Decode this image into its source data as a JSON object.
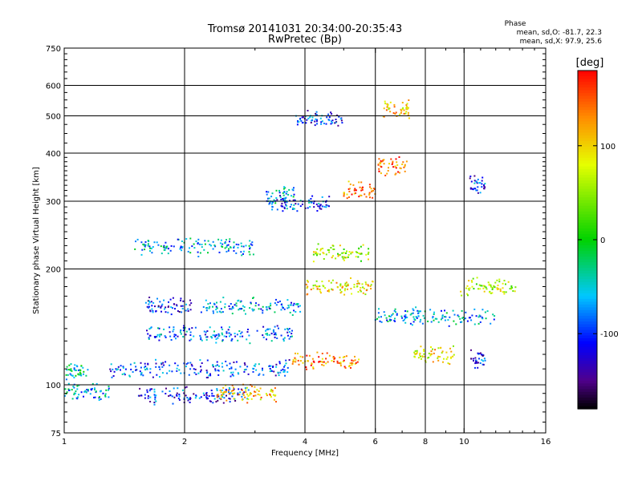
{
  "chart_data": {
    "type": "scatter",
    "title": "Tromsø 20141031 20:34:00-20:35:43",
    "subtitle": "RwPretec (Bp)",
    "xlabel": "Frequency [MHz]",
    "ylabel": "Stationary phase Virtual Height [km]",
    "x_scale": "log",
    "y_scale": "log",
    "xlim": [
      1,
      16
    ],
    "ylim": [
      75,
      750
    ],
    "grid": true,
    "x_ticks": [
      1,
      2,
      4,
      6,
      8,
      10,
      16
    ],
    "x_tick_labels": [
      "1",
      "2",
      "4",
      "6",
      "8",
      "10",
      "16"
    ],
    "y_ticks": [
      75,
      100,
      200,
      300,
      400,
      500,
      600,
      750
    ],
    "y_tick_labels": [
      "75",
      "100",
      "200",
      "300",
      "400",
      "500",
      "600",
      "750"
    ],
    "phase_stats": {
      "heading": "Phase",
      "o_line": "mean, sd,O: -81.7, 22.3",
      "x_line": "mean, sd,X:  97.9, 25.6"
    },
    "colorbar": {
      "label": "[deg]",
      "range": [
        -180,
        180
      ],
      "ticks": [
        100,
        0,
        -100
      ],
      "tick_labels": [
        "100",
        "0",
        "-100"
      ]
    },
    "echo_clusters": [
      {
        "fmin": 1.0,
        "fmax": 1.15,
        "h": 108,
        "phase": -40
      },
      {
        "fmin": 1.0,
        "fmax": 1.3,
        "h": 96,
        "phase": -60
      },
      {
        "fmin": 1.3,
        "fmax": 3.7,
        "h": 110,
        "phase": -90
      },
      {
        "fmin": 1.5,
        "fmax": 2.9,
        "h": 94,
        "phase": -100
      },
      {
        "fmin": 2.4,
        "fmax": 3.4,
        "h": 95,
        "phase": 110
      },
      {
        "fmin": 1.5,
        "fmax": 3.0,
        "h": 228,
        "phase": -60
      },
      {
        "fmin": 1.6,
        "fmax": 3.8,
        "h": 135,
        "phase": -80
      },
      {
        "fmin": 1.6,
        "fmax": 2.1,
        "h": 160,
        "phase": -110
      },
      {
        "fmin": 2.2,
        "fmax": 3.9,
        "h": 160,
        "phase": -70
      },
      {
        "fmin": 3.2,
        "fmax": 3.8,
        "h": 310,
        "phase": -60
      },
      {
        "fmin": 3.3,
        "fmax": 4.6,
        "h": 295,
        "phase": -90
      },
      {
        "fmin": 3.8,
        "fmax": 5.0,
        "h": 490,
        "phase": -100
      },
      {
        "fmin": 3.7,
        "fmax": 5.5,
        "h": 115,
        "phase": 130
      },
      {
        "fmin": 4.0,
        "fmax": 6.0,
        "h": 180,
        "phase": 90
      },
      {
        "fmin": 4.2,
        "fmax": 5.8,
        "h": 220,
        "phase": 60
      },
      {
        "fmin": 5.0,
        "fmax": 6.0,
        "h": 320,
        "phase": 140
      },
      {
        "fmin": 6.2,
        "fmax": 7.3,
        "h": 520,
        "phase": 100
      },
      {
        "fmin": 6.1,
        "fmax": 7.2,
        "h": 370,
        "phase": 150
      },
      {
        "fmin": 6.0,
        "fmax": 12.0,
        "h": 150,
        "phase": -60
      },
      {
        "fmin": 7.5,
        "fmax": 9.5,
        "h": 120,
        "phase": 90
      },
      {
        "fmin": 10.3,
        "fmax": 11.3,
        "h": 117,
        "phase": -110
      },
      {
        "fmin": 10.3,
        "fmax": 11.3,
        "h": 330,
        "phase": -100
      },
      {
        "fmin": 9.8,
        "fmax": 13.5,
        "h": 180,
        "phase": 60
      }
    ]
  }
}
